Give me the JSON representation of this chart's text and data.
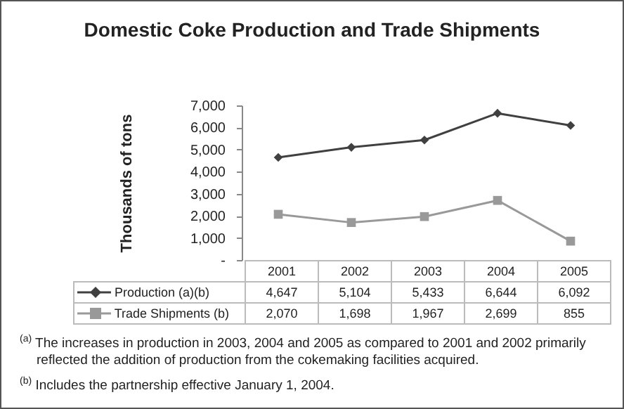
{
  "chart_data": {
    "type": "line",
    "title": "Domestic Coke Production and Trade Shipments",
    "ylabel": "Thousands of tons",
    "categories": [
      "2001",
      "2002",
      "2003",
      "2004",
      "2005"
    ],
    "series": [
      {
        "name": "Production (a)(b)",
        "color": "#404040",
        "marker": "diamond",
        "values": [
          4647,
          5104,
          5433,
          6644,
          6092
        ],
        "value_labels": [
          "4,647",
          "5,104",
          "5,433",
          "6,644",
          "6,092"
        ]
      },
      {
        "name": "Trade Shipments (b)",
        "color": "#999999",
        "marker": "square",
        "values": [
          2070,
          1698,
          1967,
          2699,
          855
        ],
        "value_labels": [
          "2,070",
          "1,698",
          "1,967",
          "2,699",
          "855"
        ]
      }
    ],
    "ylim": [
      0,
      7000
    ],
    "yticks": [
      {
        "value": 0,
        "label": "-"
      },
      {
        "value": 1000,
        "label": "1,000"
      },
      {
        "value": 2000,
        "label": "2,000"
      },
      {
        "value": 3000,
        "label": "3,000"
      },
      {
        "value": 4000,
        "label": "4,000"
      },
      {
        "value": 5000,
        "label": "5,000"
      },
      {
        "value": 6000,
        "label": "6,000"
      },
      {
        "value": 7000,
        "label": "7,000"
      }
    ],
    "legend": "bottom",
    "grid": false,
    "annotations": [
      "$^{(a)}$ The increases in production in 2003, 2004 and 2005 as compared to 2001 and 2002 primarily reflected the addition of production from the cokemaking facilities acquired.",
      "$^{(b)}$ Includes the partnership effective January 1, 2004."
    ]
  }
}
